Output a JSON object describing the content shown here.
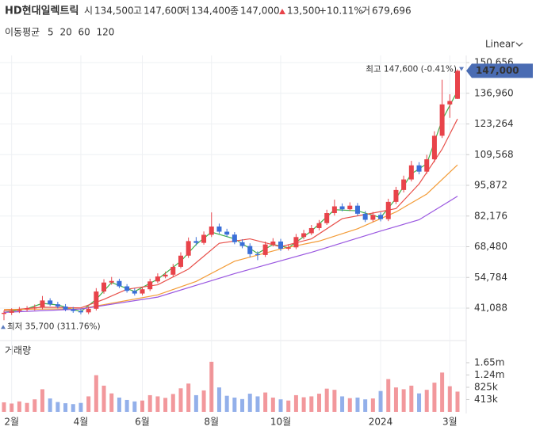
{
  "chart_data": {
    "type": "candlestick",
    "header": {
      "name": "HD현대일렉트릭",
      "fields": [
        {
          "name": "시",
          "value": 134500,
          "label": "134,500"
        },
        {
          "name": "고",
          "value": 147600,
          "label": "147,600"
        },
        {
          "name": "저",
          "value": 134400,
          "label": "134,400"
        },
        {
          "name": "종",
          "value": 147000,
          "label": "147,000"
        },
        {
          "name": "거",
          "value": 679696,
          "label": "679,696"
        }
      ],
      "change": {
        "value": 13500,
        "label": "13,500"
      },
      "change_pct": {
        "value": 10.11,
        "label": "+10.11%"
      }
    },
    "ma_label": "이동평균",
    "scale_label": "Linear",
    "volume_label": "거래량",
    "log_scale": false,
    "grid": true,
    "up_color": "#e8434a",
    "down_color": "#3a6fd8",
    "categories": [
      null,
      "2월",
      null,
      null,
      null,
      null,
      null,
      null,
      null,
      null,
      "4월",
      null,
      null,
      null,
      null,
      null,
      null,
      null,
      "6월",
      null,
      null,
      null,
      null,
      null,
      null,
      null,
      null,
      "8월",
      null,
      null,
      null,
      null,
      null,
      null,
      null,
      null,
      "10월",
      null,
      null,
      null,
      null,
      null,
      null,
      null,
      null,
      null,
      null,
      null,
      null,
      "2024",
      null,
      null,
      null,
      null,
      null,
      null,
      null,
      null,
      "3월",
      null
    ],
    "open": [
      38500,
      39000,
      39800,
      40500,
      41000,
      41500,
      44500,
      42800,
      41800,
      40500,
      39800,
      39200,
      40800,
      48500,
      52500,
      53200,
      50800,
      48800,
      47600,
      49500,
      53000,
      55200,
      56000,
      59500,
      64500,
      71000,
      70200,
      73800,
      77500,
      75200,
      73900,
      70500,
      68800,
      65200,
      64800,
      69500,
      70800,
      67600,
      68200,
      72800,
      74500,
      76800,
      79000,
      83500,
      86500,
      85200,
      86800,
      83200,
      80500,
      82700,
      80800,
      88500,
      93800,
      98500,
      104800,
      102000,
      107500,
      118000,
      132000,
      134500
    ],
    "high": [
      40000,
      41000,
      41600,
      42000,
      42700,
      46500,
      45500,
      43900,
      42900,
      41600,
      40900,
      41800,
      50000,
      54000,
      55000,
      54200,
      51800,
      49900,
      50600,
      54200,
      56600,
      57400,
      60800,
      66000,
      72600,
      72800,
      75300,
      83800,
      78800,
      76500,
      75000,
      71800,
      70000,
      66400,
      70800,
      72300,
      72000,
      69600,
      74200,
      76000,
      78200,
      80400,
      85000,
      89500,
      87800,
      88300,
      88000,
      84400,
      84000,
      83800,
      89900,
      95200,
      100200,
      106800,
      106200,
      109500,
      120000,
      143000,
      136500,
      147600
    ],
    "low": [
      35700,
      38000,
      38900,
      39600,
      40100,
      40500,
      42000,
      41000,
      39700,
      39000,
      38300,
      38400,
      40000,
      47500,
      51500,
      50000,
      48000,
      46700,
      46800,
      48700,
      52200,
      54400,
      55200,
      58800,
      63500,
      69000,
      69400,
      72800,
      74300,
      72900,
      69600,
      67800,
      63800,
      62500,
      63900,
      68600,
      66600,
      66800,
      67400,
      71800,
      73700,
      75800,
      78200,
      82400,
      84300,
      84400,
      82300,
      79500,
      79600,
      79800,
      79900,
      87500,
      92700,
      97600,
      100800,
      101000,
      106200,
      117000,
      126000,
      134400
    ],
    "close": [
      39000,
      39800,
      40500,
      41000,
      41500,
      44500,
      42800,
      41800,
      40500,
      39800,
      39200,
      40800,
      48500,
      52500,
      53200,
      50800,
      48800,
      47600,
      49500,
      53000,
      55200,
      56000,
      59500,
      64500,
      71000,
      70200,
      73800,
      77500,
      75200,
      73900,
      70500,
      68800,
      65200,
      64800,
      69500,
      70800,
      67600,
      68200,
      72800,
      74500,
      76800,
      79000,
      83500,
      86500,
      85200,
      86800,
      83200,
      80500,
      82700,
      80800,
      88500,
      93800,
      98500,
      104800,
      102000,
      107500,
      118000,
      132000,
      133500,
      147000
    ],
    "volume": [
      320000,
      280000,
      350000,
      300000,
      420000,
      760000,
      450000,
      330000,
      290000,
      260000,
      300000,
      520000,
      1230000,
      880000,
      620000,
      480000,
      400000,
      350000,
      380000,
      560000,
      520000,
      470000,
      600000,
      790000,
      950000,
      560000,
      720000,
      1680000,
      820000,
      540000,
      480000,
      430000,
      610000,
      520000,
      650000,
      480000,
      420000,
      380000,
      560000,
      490000,
      520000,
      610000,
      780000,
      740000,
      520000,
      460000,
      480000,
      420000,
      450000,
      700000,
      1100000,
      820000,
      760000,
      880000,
      620000,
      740000,
      980000,
      1320000,
      860000,
      679696
    ],
    "series": [
      {
        "name": "5",
        "color": "#3fae49",
        "x": [
          0,
          3,
          5,
          7,
          10,
          12,
          14,
          17,
          20,
          23,
          25,
          27,
          30,
          33,
          35,
          37,
          40,
          43,
          46,
          49,
          51,
          53,
          55,
          57,
          59
        ],
        "values": [
          39200,
          40800,
          43200,
          42500,
          39500,
          45000,
          52500,
          48500,
          54000,
          62000,
          69500,
          75000,
          72000,
          65500,
          69500,
          68000,
          75500,
          85000,
          84500,
          81500,
          90000,
          101000,
          105500,
          125000,
          138000
        ]
      },
      {
        "name": "20",
        "color": "#e8504a",
        "x": [
          0,
          5,
          10,
          13,
          16,
          20,
          24,
          28,
          32,
          36,
          40,
          44,
          48,
          51,
          54,
          57,
          59
        ],
        "values": [
          40000,
          41500,
          41200,
          45000,
          49500,
          51500,
          58500,
          70000,
          72000,
          68500,
          72000,
          81000,
          83500,
          85500,
          96500,
          112000,
          125500
        ]
      },
      {
        "name": "60",
        "color": "#f39c38",
        "x": [
          0,
          10,
          16,
          20,
          25,
          30,
          36,
          41,
          46,
          51,
          55,
          59
        ],
        "values": [
          40500,
          40800,
          44500,
          47000,
          53000,
          62000,
          67500,
          71000,
          76500,
          84000,
          92000,
          105000
        ]
      },
      {
        "name": "120",
        "color": "#9a57e0",
        "x": [
          0,
          10,
          20,
          30,
          40,
          49,
          54,
          59
        ],
        "values": [
          39200,
          40700,
          46000,
          56500,
          66000,
          75500,
          80500,
          91000
        ]
      }
    ],
    "ylim": [
      28370,
      153840
    ],
    "yticks": [
      {
        "value": 41088,
        "label": "41,088"
      },
      {
        "value": 54784,
        "label": "54,784"
      },
      {
        "value": 68480,
        "label": "68,480"
      },
      {
        "value": 82176,
        "label": "82,176"
      },
      {
        "value": 95872,
        "label": "95,872"
      },
      {
        "value": 109568,
        "label": "109,568"
      },
      {
        "value": 123264,
        "label": "123,264"
      },
      {
        "value": 136960,
        "label": "136,960"
      },
      {
        "value": 150656,
        "label": "150,656"
      }
    ],
    "volume_ylim": [
      0,
      2340000
    ],
    "volume_ticks": [
      {
        "value": 413000,
        "label": "413k"
      },
      {
        "value": 825000,
        "label": "825k"
      },
      {
        "value": 1240000,
        "label": "1.24m"
      },
      {
        "value": 1650000,
        "label": "1.65m"
      }
    ],
    "max_marker": {
      "value": 147600,
      "label": "최고 147,600 (-0.41%)"
    },
    "min_marker": {
      "value": 35700,
      "label": "최저 35,700 (311.76%)"
    },
    "last_price": {
      "value": 147000,
      "label": "147,000"
    }
  }
}
